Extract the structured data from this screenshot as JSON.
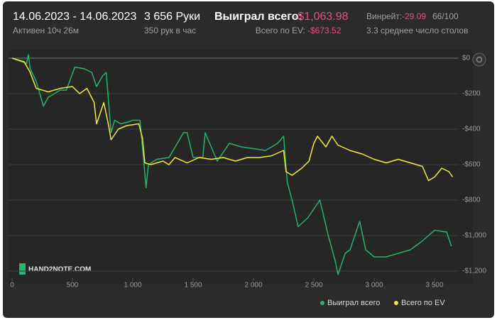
{
  "header": {
    "date_range": "14.06.2023 - 14.06.2023",
    "active": "Активен 10ч 26м",
    "hands": "3 656 Руки",
    "hands_per_hour": "350 рук в час",
    "won_label": "Выиграл всего:",
    "won_value": "-$1,063.98",
    "ev_label": "Всего по EV:",
    "ev_value": "-$673.52",
    "winrate_label": "Винрейт:",
    "winrate_value": "-29.09",
    "winrate_ratio": "66/100",
    "tables": "3.3 среднее число столов"
  },
  "logo": "HAND2NOTE.COM",
  "chart_data": {
    "type": "line",
    "xlim": [
      0,
      3700
    ],
    "ylim": [
      -1240,
      30
    ],
    "xticks": [
      0,
      500,
      {
        "value": 1000,
        "label": "1 000"
      },
      {
        "value": 1500,
        "label": "1 500"
      },
      {
        "value": 2000,
        "label": "2 000"
      },
      {
        "value": 2500,
        "label": "2 500"
      },
      {
        "value": 3000,
        "label": "3 000"
      },
      {
        "value": 3500,
        "label": "3 500"
      }
    ],
    "yticks": [
      {
        "value": 0,
        "label": "$0"
      },
      {
        "value": -200,
        "label": "-$200"
      },
      {
        "value": -400,
        "label": "-$400"
      },
      {
        "value": -600,
        "label": "-$600"
      },
      {
        "value": -800,
        "label": "-$800"
      },
      {
        "value": -1000,
        "label": "-$1,000"
      },
      {
        "value": -1200,
        "label": "-$1,200"
      }
    ],
    "grid": true,
    "legend": "bottom-right",
    "series": [
      {
        "name": "Выиграл всего",
        "color": "#27b36a",
        "x": [
          0,
          80,
          120,
          135,
          150,
          200,
          230,
          260,
          300,
          350,
          400,
          450,
          520,
          600,
          660,
          700,
          750,
          780,
          820,
          850,
          900,
          960,
          1000,
          1060,
          1080,
          1100,
          1110,
          1130,
          1200,
          1300,
          1420,
          1450,
          1500,
          1580,
          1600,
          1650,
          1700,
          1750,
          1800,
          1900,
          2000,
          2100,
          2200,
          2250,
          2280,
          2320,
          2370,
          2450,
          2550,
          2620,
          2680,
          2700,
          2760,
          2800,
          2880,
          2930,
          3000,
          3100,
          3200,
          3300,
          3400,
          3500,
          3600,
          3640
        ],
        "values": [
          0,
          -20,
          -30,
          20,
          -60,
          -130,
          -200,
          -270,
          -220,
          -200,
          -180,
          -180,
          -50,
          -60,
          -80,
          -160,
          -100,
          -80,
          -420,
          -350,
          -370,
          -360,
          -350,
          -350,
          -500,
          -650,
          -730,
          -600,
          -570,
          -560,
          -420,
          -420,
          -560,
          -560,
          -420,
          -500,
          -580,
          -530,
          -480,
          -500,
          -510,
          -520,
          -480,
          -440,
          -700,
          -800,
          -950,
          -900,
          -800,
          -1000,
          -1150,
          -1220,
          -1100,
          -1080,
          -920,
          -1080,
          -1120,
          -1120,
          -1100,
          -1080,
          -1030,
          -970,
          -980,
          -1060
        ]
      },
      {
        "name": "Всего по EV",
        "color": "#f2ea3a",
        "x": [
          0,
          100,
          150,
          200,
          300,
          400,
          500,
          560,
          620,
          680,
          700,
          760,
          800,
          820,
          880,
          950,
          1050,
          1080,
          1100,
          1150,
          1250,
          1300,
          1350,
          1450,
          1550,
          1650,
          1750,
          1850,
          1950,
          2050,
          2150,
          2250,
          2270,
          2320,
          2400,
          2460,
          2500,
          2530,
          2600,
          2650,
          2700,
          2800,
          2900,
          3000,
          3100,
          3200,
          3300,
          3400,
          3450,
          3500,
          3560,
          3620,
          3650
        ],
        "values": [
          0,
          -20,
          -80,
          -170,
          -190,
          -170,
          -160,
          -200,
          -170,
          -250,
          -370,
          -250,
          -380,
          -460,
          -400,
          -380,
          -370,
          -450,
          -590,
          -600,
          -580,
          -600,
          -560,
          -590,
          -560,
          -570,
          -560,
          -580,
          -560,
          -560,
          -550,
          -520,
          -640,
          -660,
          -620,
          -580,
          -480,
          -440,
          -500,
          -440,
          -490,
          -520,
          -540,
          -570,
          -590,
          -570,
          -590,
          -610,
          -690,
          -670,
          -620,
          -640,
          -670
        ]
      }
    ]
  }
}
